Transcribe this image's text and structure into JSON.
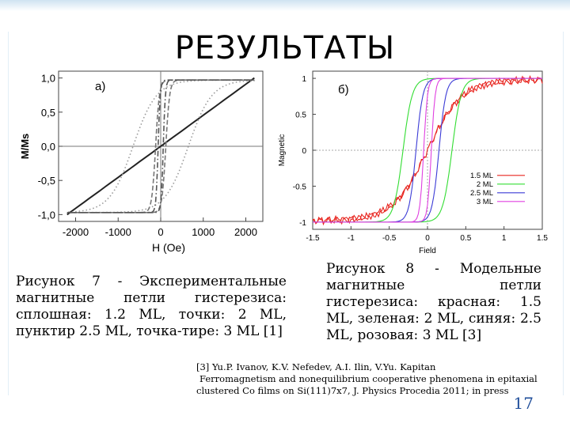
{
  "slide": {
    "title": "РЕЗУЛЬТАТЫ",
    "page_number": "17",
    "accent_color": "#1f4e9a"
  },
  "figure_left": {
    "panel_label": "а)",
    "caption": "Рисунок 7 - Экспериментальные магнитные петли гистерезиса: сплошная: 1.2 ML, точки: 2 ML, пунктир 2.5 ML, точка-тире: 3 ML [1]"
  },
  "figure_right": {
    "panel_label": "б)",
    "caption": "Рисунок 8 - Модельные магнитные петли гистерезиса: красная: 1.5 ML, зеленая: 2 ML, синяя: 2.5 ML, розовая: 3 ML [3]"
  },
  "reference": {
    "line1": "[3] Yu.P. Ivanov, K.V. Nefedev, A.I. Ilin, V.Yu. Kapitan",
    "line2": "Ferromagnetism and nonequilibrium cooperative phenomena in epitaxial",
    "line3": "clustered Co films on Si(111)7x7, J. Physics Procedia 2011; in press"
  },
  "chart_data": [
    {
      "type": "line",
      "title": "",
      "xlabel": "H (Oe)",
      "ylabel": "M/Ms",
      "xlim": [
        -2400,
        2400
      ],
      "ylim": [
        -1.1,
        1.1
      ],
      "x_ticks": [
        "-2000",
        "-1000",
        "0",
        "1000",
        "2000"
      ],
      "x_tick_values": [
        -2000,
        -1000,
        0,
        1000,
        2000
      ],
      "y_ticks": [
        "1,0",
        "0,5",
        "0,0",
        "-0,5",
        "-1,0"
      ],
      "y_tick_values": [
        1.0,
        0.5,
        0.0,
        -0.5,
        -1.0
      ],
      "series": [
        {
          "name": "1.2 ML",
          "style": "solid",
          "color": "#222222",
          "sat": 2200,
          "hc": 0,
          "width": 1,
          "kind": "linear"
        },
        {
          "name": "2 ML",
          "style": "dotted",
          "color": "#9a9a9a",
          "sat": 2000,
          "hc": 650,
          "width": 550,
          "kind": "loop"
        },
        {
          "name": "2.5 ML",
          "style": "dashed",
          "color": "#777777",
          "sat": 1300,
          "hc": 120,
          "width": 90,
          "kind": "loop"
        },
        {
          "name": "3 ML",
          "style": "dashdot",
          "color": "#555555",
          "sat": 1300,
          "hc": 60,
          "width": 50,
          "kind": "loop"
        }
      ]
    },
    {
      "type": "line",
      "title": "",
      "xlabel": "Field",
      "ylabel": "Magnetic",
      "xlim": [
        -1.5,
        1.5
      ],
      "ylim": [
        -1.1,
        1.1
      ],
      "x_ticks": [
        "-1.5",
        "-1",
        "-0.5",
        "0",
        "0.5",
        "1",
        "1.5"
      ],
      "x_tick_values": [
        -1.5,
        -1,
        -0.5,
        0,
        0.5,
        1,
        1.5
      ],
      "y_ticks": [
        "1",
        "0.5",
        "0",
        "-0.5",
        "-1"
      ],
      "y_tick_values": [
        1,
        0.5,
        0,
        -0.5,
        -1
      ],
      "legend_position": "right",
      "series": [
        {
          "name": "1.5 ML",
          "color": "#e8251f",
          "hc": 0,
          "width": 0.45
        },
        {
          "name": "2 ML",
          "color": "#33dd33",
          "hc": 0.32,
          "width": 0.12
        },
        {
          "name": "2.5 ML",
          "color": "#3b3bd6",
          "hc": 0.15,
          "width": 0.09
        },
        {
          "name": "3 ML",
          "color": "#e040e0",
          "hc": 0.05,
          "width": 0.05
        }
      ]
    }
  ]
}
